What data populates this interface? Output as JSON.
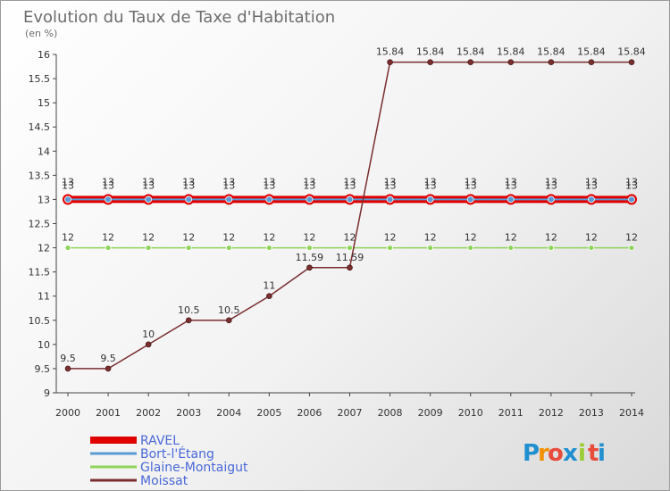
{
  "chart_data": {
    "type": "line",
    "title": "Evolution du Taux de Taxe d'Habitation",
    "subtitle": "(en %)",
    "x": [
      2000,
      2001,
      2002,
      2003,
      2004,
      2005,
      2006,
      2007,
      2008,
      2009,
      2010,
      2011,
      2012,
      2013,
      2014
    ],
    "ylim": [
      9,
      16
    ],
    "yticks": [
      9,
      9.5,
      10,
      10.5,
      11,
      11.5,
      12,
      12.5,
      13,
      13.5,
      14,
      14.5,
      15,
      15.5,
      16
    ],
    "ytick_labels": [
      "9",
      "9.5",
      "10",
      "10.5",
      "11",
      "11.5",
      "12",
      "12.5",
      "13",
      "13.5",
      "14",
      "14.5",
      "15",
      "15.5",
      "16"
    ],
    "grid": false,
    "legend_position": "bottom-left",
    "series": [
      {
        "name": "RAVEL",
        "color": "#e00000",
        "values": [
          13,
          13,
          13,
          13,
          13,
          13,
          13,
          13,
          13,
          13,
          13,
          13,
          13,
          13,
          13
        ],
        "labels": [
          "13",
          "13",
          "13",
          "13",
          "13",
          "13",
          "13",
          "13",
          "13",
          "13",
          "13",
          "13",
          "13",
          "13",
          "13"
        ]
      },
      {
        "name": "Bort-l'Étang",
        "color": "#5b9bd5",
        "values": [
          13,
          13,
          13,
          13,
          13,
          13,
          13,
          13,
          13,
          13,
          13,
          13,
          13,
          13,
          13
        ],
        "labels": [
          "13",
          "13",
          "13",
          "13",
          "13",
          "13",
          "13",
          "13",
          "13",
          "13",
          "13",
          "13",
          "13",
          "13",
          "13"
        ]
      },
      {
        "name": "Glaine-Montaigut",
        "color": "#8fd45a",
        "values": [
          12,
          12,
          12,
          12,
          12,
          12,
          12,
          12,
          12,
          12,
          12,
          12,
          12,
          12,
          12
        ],
        "labels": [
          "12",
          "12",
          "12",
          "12",
          "12",
          "12",
          "12",
          "12",
          "12",
          "12",
          "12",
          "12",
          "12",
          "12",
          "12"
        ]
      },
      {
        "name": "Moissat",
        "color": "#7a2e2e",
        "values": [
          9.5,
          9.5,
          10,
          10.5,
          10.5,
          11,
          11.59,
          11.59,
          15.84,
          15.84,
          15.84,
          15.84,
          15.84,
          15.84,
          15.84
        ],
        "labels": [
          "9.5",
          "9.5",
          "10",
          "10.5",
          "10.5",
          "11",
          "11.59",
          "11.59",
          "15.84",
          "15.84",
          "15.84",
          "15.84",
          "15.84",
          "15.84",
          "15.84"
        ]
      }
    ]
  },
  "logo": {
    "letters": [
      "P",
      "r",
      "o",
      "x",
      "i",
      "t",
      "i"
    ],
    "colors": [
      "#1f8fd0",
      "#f39200",
      "#e74c3c",
      "#1f8fd0",
      "#9acd32",
      "#e74c3c",
      "#1f8fd0"
    ]
  }
}
